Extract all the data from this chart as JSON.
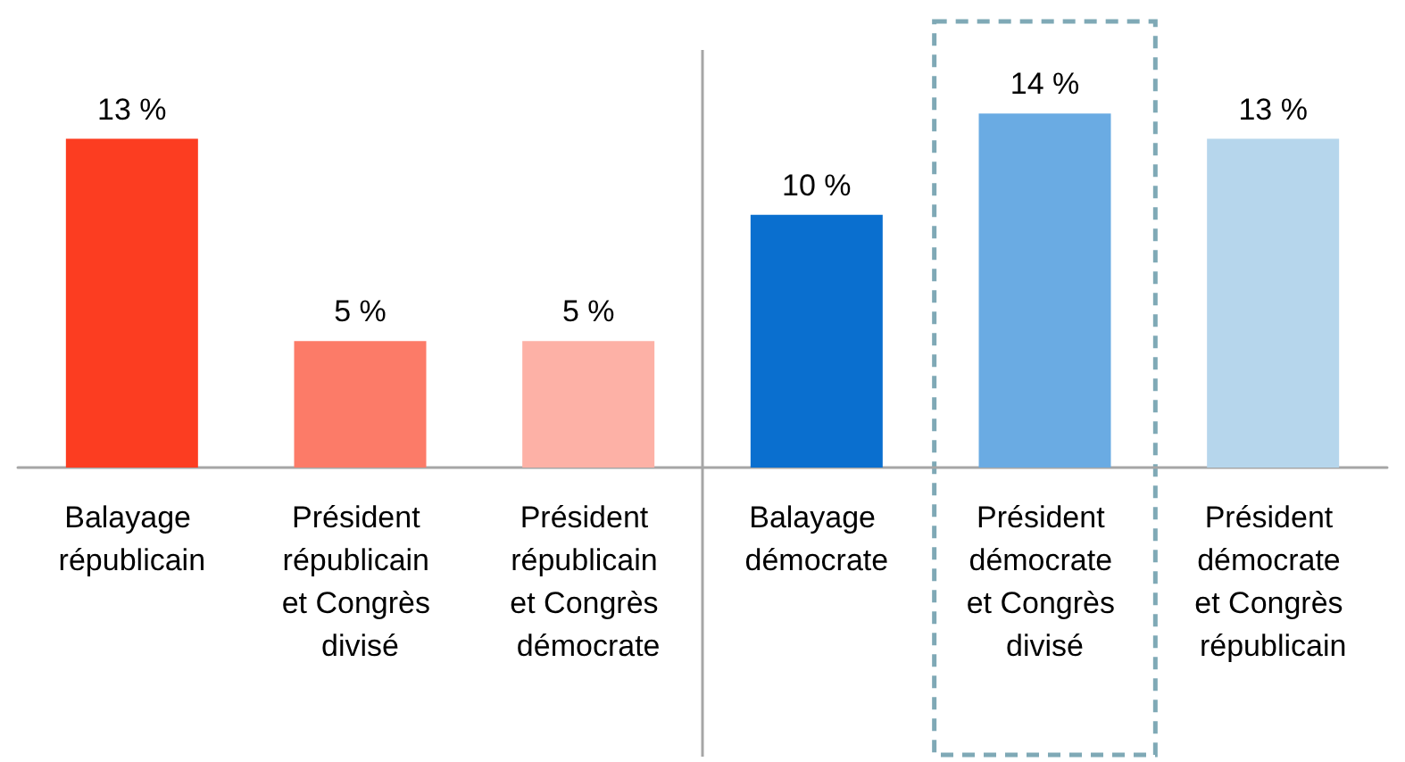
{
  "chart_data": {
    "type": "bar",
    "categories": [
      "Balayage républicain",
      "Président républicain et Congrès divisé",
      "Président républicain et Congrès démocrate",
      "Balayage démocrate",
      "Président démocrate et Congrès divisé",
      "Président démocrate et Congrès républicain"
    ],
    "values": [
      13,
      5,
      5,
      10,
      14,
      13
    ],
    "colors": [
      "#fc3d21",
      "#fc7b68",
      "#fdb1a6",
      "#0a6fcf",
      "#6aabe3",
      "#b6d6ec"
    ],
    "value_labels": [
      "13 %",
      "5 %",
      "5 %",
      "10 %",
      "14 %",
      "13 %"
    ],
    "tick_labels": "x"
  }
}
